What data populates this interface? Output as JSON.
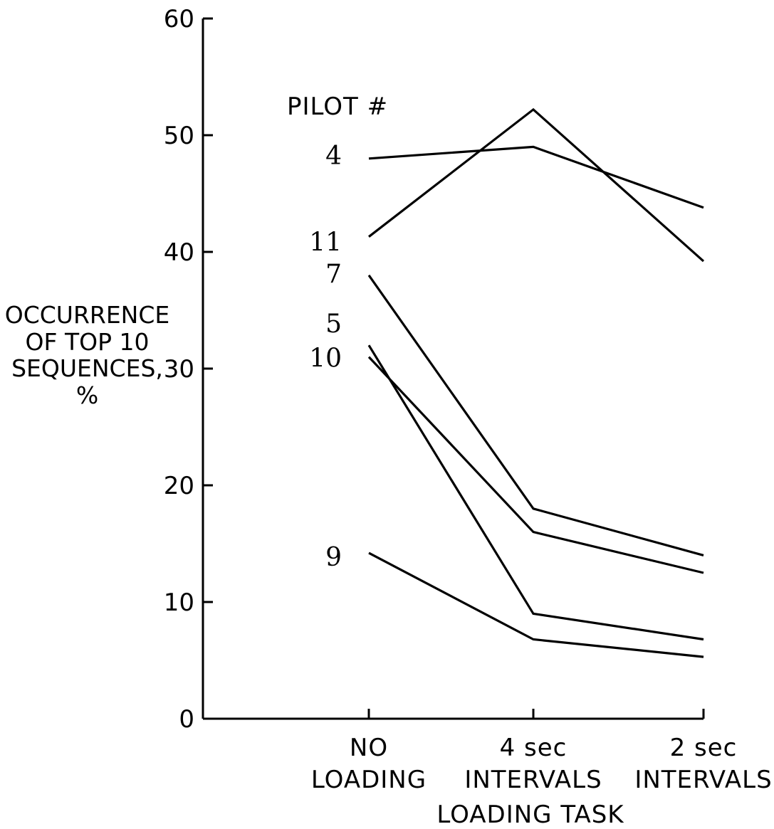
{
  "chart_data": {
    "type": "line",
    "ylabel_lines": [
      "OCCURRENCE",
      "OF TOP 10",
      "SEQUENCES,",
      "%"
    ],
    "xlabel": "LOADING TASK",
    "legend_title": "PILOT #",
    "categories": [
      [
        "NO",
        "LOADING"
      ],
      [
        "4 sec",
        "INTERVALS"
      ],
      [
        "2 sec",
        "INTERVALS"
      ]
    ],
    "yticks": [
      "0",
      "10",
      "20",
      "30",
      "40",
      "50",
      "60"
    ],
    "ylim": [
      0,
      60
    ],
    "grid": false,
    "series": [
      {
        "name": "4",
        "values": [
          48.0,
          49.0,
          43.8
        ]
      },
      {
        "name": "11",
        "values": [
          41.3,
          52.2,
          39.2
        ]
      },
      {
        "name": "7",
        "values": [
          38.0,
          18.0,
          14.0
        ]
      },
      {
        "name": "5",
        "values": [
          32.0,
          9.0,
          6.8
        ]
      },
      {
        "name": "10",
        "values": [
          31.0,
          16.0,
          12.5
        ]
      },
      {
        "name": "9",
        "values": [
          14.2,
          6.8,
          5.3
        ]
      }
    ]
  }
}
